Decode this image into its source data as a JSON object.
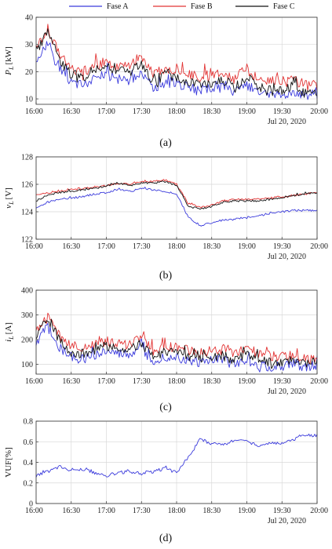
{
  "legend": {
    "items": [
      {
        "label": "Fase A",
        "color": "#3b3bdc"
      },
      {
        "label": "Fase B",
        "color": "#e23434"
      },
      {
        "label": "Fase C",
        "color": "#111111"
      }
    ]
  },
  "chart_data": [
    {
      "type": "line",
      "caption": "(a)",
      "ylabel_main": "P",
      "ylabel_sub": "L",
      "ylabel_unit": "[kW]",
      "xlabel": "",
      "x_ticks": [
        "16:00",
        "16:30",
        "17:00",
        "17:30",
        "18:00",
        "18:30",
        "19:00",
        "19:30",
        "20:00"
      ],
      "x_date": "Jul 20, 2020",
      "x_range": [
        "16:00",
        "20:00"
      ],
      "ylim": [
        8,
        40
      ],
      "y_ticks": [
        10,
        20,
        30,
        40
      ],
      "grid": true,
      "series": [
        {
          "name": "Fase A",
          "color": "#3b3bdc",
          "x": [
            0,
            10,
            20,
            30,
            40,
            50,
            60,
            70,
            80,
            90,
            100,
            110,
            120,
            130,
            140,
            150,
            160,
            170,
            180,
            190,
            200,
            210,
            220,
            230,
            240
          ],
          "y": [
            24,
            31,
            21,
            16,
            15,
            17,
            19,
            17,
            17,
            20,
            14,
            16,
            16,
            14,
            13,
            14,
            14,
            12,
            15,
            12,
            11,
            11,
            13,
            11,
            12
          ]
        },
        {
          "name": "Fase B",
          "color": "#e23434",
          "x": [
            0,
            10,
            20,
            30,
            40,
            50,
            60,
            70,
            80,
            90,
            100,
            110,
            120,
            130,
            140,
            150,
            160,
            170,
            180,
            190,
            200,
            210,
            220,
            230,
            240
          ],
          "y": [
            28,
            36,
            26,
            21,
            20,
            22,
            24,
            22,
            22,
            26,
            19,
            21,
            21,
            19,
            18,
            19,
            20,
            17,
            21,
            17,
            17,
            16,
            17,
            15,
            15
          ]
        },
        {
          "name": "Fase C",
          "color": "#111111",
          "x": [
            0,
            10,
            20,
            30,
            40,
            50,
            60,
            70,
            80,
            90,
            100,
            110,
            120,
            130,
            140,
            150,
            160,
            170,
            180,
            190,
            200,
            210,
            220,
            230,
            240
          ],
          "y": [
            27,
            35,
            24,
            19,
            18,
            20,
            22,
            20,
            20,
            23,
            16,
            19,
            18,
            16,
            15,
            16,
            17,
            14,
            18,
            14,
            13,
            13,
            15,
            12,
            13
          ]
        }
      ]
    },
    {
      "type": "line",
      "caption": "(b)",
      "ylabel_main": "v",
      "ylabel_sub": "L",
      "ylabel_unit": "[V]",
      "xlabel": "",
      "x_ticks": [
        "16:00",
        "16:30",
        "17:00",
        "17:30",
        "18:00",
        "18:30",
        "19:00",
        "19:30",
        "20:00"
      ],
      "x_date": "Jul 20, 2020",
      "x_range": [
        "16:00",
        "20:00"
      ],
      "ylim": [
        122,
        128
      ],
      "y_ticks": [
        122,
        124,
        126,
        128
      ],
      "grid": true,
      "series": [
        {
          "name": "Fase A",
          "color": "#3b3bdc",
          "x": [
            0,
            10,
            20,
            30,
            40,
            50,
            60,
            70,
            80,
            90,
            100,
            110,
            120,
            130,
            140,
            150,
            160,
            170,
            180,
            190,
            200,
            210,
            220,
            230,
            240
          ],
          "y": [
            124.3,
            124.7,
            124.9,
            125.0,
            125.1,
            125.3,
            125.4,
            125.6,
            125.5,
            125.7,
            125.6,
            125.5,
            125.3,
            123.6,
            123.0,
            123.2,
            123.4,
            123.5,
            123.6,
            123.7,
            123.9,
            124.0,
            124.1,
            124.1,
            124.1
          ]
        },
        {
          "name": "Fase B",
          "color": "#e23434",
          "x": [
            0,
            10,
            20,
            30,
            40,
            50,
            60,
            70,
            80,
            90,
            100,
            110,
            120,
            130,
            140,
            150,
            160,
            170,
            180,
            190,
            200,
            210,
            220,
            230,
            240
          ],
          "y": [
            125.2,
            125.4,
            125.5,
            125.6,
            125.7,
            125.8,
            125.9,
            126.1,
            126.0,
            126.2,
            126.2,
            126.3,
            126.0,
            124.6,
            124.3,
            124.5,
            124.8,
            124.9,
            124.9,
            124.9,
            125.0,
            125.1,
            125.2,
            125.3,
            125.4
          ]
        },
        {
          "name": "Fase C",
          "color": "#111111",
          "x": [
            0,
            10,
            20,
            30,
            40,
            50,
            60,
            70,
            80,
            90,
            100,
            110,
            120,
            130,
            140,
            150,
            160,
            170,
            180,
            190,
            200,
            210,
            220,
            230,
            240
          ],
          "y": [
            124.8,
            125.2,
            125.4,
            125.5,
            125.6,
            125.7,
            125.9,
            126.1,
            125.9,
            126.1,
            126.1,
            126.2,
            125.9,
            124.4,
            124.2,
            124.4,
            124.7,
            124.8,
            124.8,
            124.8,
            124.9,
            125.0,
            125.2,
            125.3,
            125.4
          ]
        }
      ]
    },
    {
      "type": "line",
      "caption": "(c)",
      "ylabel_main": "i",
      "ylabel_sub": "L",
      "ylabel_unit": "[A]",
      "xlabel": "",
      "x_ticks": [
        "16:00",
        "16:30",
        "17:00",
        "17:30",
        "18:00",
        "18:30",
        "19:00",
        "19:30",
        "20:00"
      ],
      "x_date": "Jul 20, 2020",
      "x_range": [
        "16:00",
        "20:00"
      ],
      "ylim": [
        60,
        400
      ],
      "y_ticks": [
        100,
        200,
        300,
        400
      ],
      "grid": true,
      "series": [
        {
          "name": "Fase A",
          "color": "#3b3bdc",
          "x": [
            0,
            10,
            20,
            30,
            40,
            50,
            60,
            70,
            80,
            90,
            100,
            110,
            120,
            130,
            140,
            150,
            160,
            170,
            180,
            190,
            200,
            210,
            220,
            230,
            240
          ],
          "y": [
            190,
            250,
            170,
            130,
            120,
            140,
            150,
            140,
            140,
            160,
            115,
            130,
            130,
            115,
            105,
            115,
            115,
            95,
            120,
            95,
            90,
            90,
            105,
            88,
            95
          ]
        },
        {
          "name": "Fase B",
          "color": "#e23434",
          "x": [
            0,
            10,
            20,
            30,
            40,
            50,
            60,
            70,
            80,
            90,
            100,
            110,
            120,
            130,
            140,
            150,
            160,
            170,
            180,
            190,
            200,
            210,
            220,
            230,
            240
          ],
          "y": [
            230,
            290,
            210,
            170,
            160,
            180,
            195,
            180,
            180,
            210,
            155,
            170,
            170,
            155,
            145,
            155,
            160,
            140,
            170,
            140,
            135,
            130,
            140,
            120,
            120
          ]
        },
        {
          "name": "Fase C",
          "color": "#111111",
          "x": [
            0,
            10,
            20,
            30,
            40,
            50,
            60,
            70,
            80,
            90,
            100,
            110,
            120,
            130,
            140,
            150,
            160,
            170,
            180,
            190,
            200,
            210,
            220,
            230,
            240
          ],
          "y": [
            215,
            280,
            195,
            150,
            140,
            160,
            175,
            160,
            160,
            185,
            130,
            150,
            145,
            130,
            120,
            130,
            135,
            115,
            145,
            115,
            105,
            105,
            120,
            100,
            105
          ]
        }
      ]
    },
    {
      "type": "line",
      "caption": "(d)",
      "ylabel_main": "VUF",
      "ylabel_sub": "",
      "ylabel_unit": "[%]",
      "xlabel": "",
      "x_ticks": [
        "16:00",
        "16:30",
        "17:00",
        "17:30",
        "18:00",
        "18:30",
        "19:00",
        "19:30",
        "20:00"
      ],
      "x_date": "Jul 20, 2020",
      "x_range": [
        "16:00",
        "20:00"
      ],
      "ylim": [
        0,
        0.8
      ],
      "y_ticks": [
        0,
        0.2,
        0.4,
        0.6,
        0.8
      ],
      "grid": true,
      "series": [
        {
          "name": "",
          "color": "#3b3bdc",
          "x": [
            0,
            10,
            20,
            30,
            40,
            50,
            60,
            70,
            80,
            90,
            100,
            110,
            120,
            130,
            140,
            150,
            160,
            170,
            180,
            190,
            200,
            210,
            220,
            230,
            240
          ],
          "y": [
            0.27,
            0.31,
            0.36,
            0.32,
            0.33,
            0.3,
            0.27,
            0.3,
            0.31,
            0.29,
            0.31,
            0.34,
            0.3,
            0.45,
            0.62,
            0.58,
            0.57,
            0.62,
            0.6,
            0.55,
            0.6,
            0.58,
            0.62,
            0.66,
            0.66
          ]
        }
      ]
    }
  ]
}
